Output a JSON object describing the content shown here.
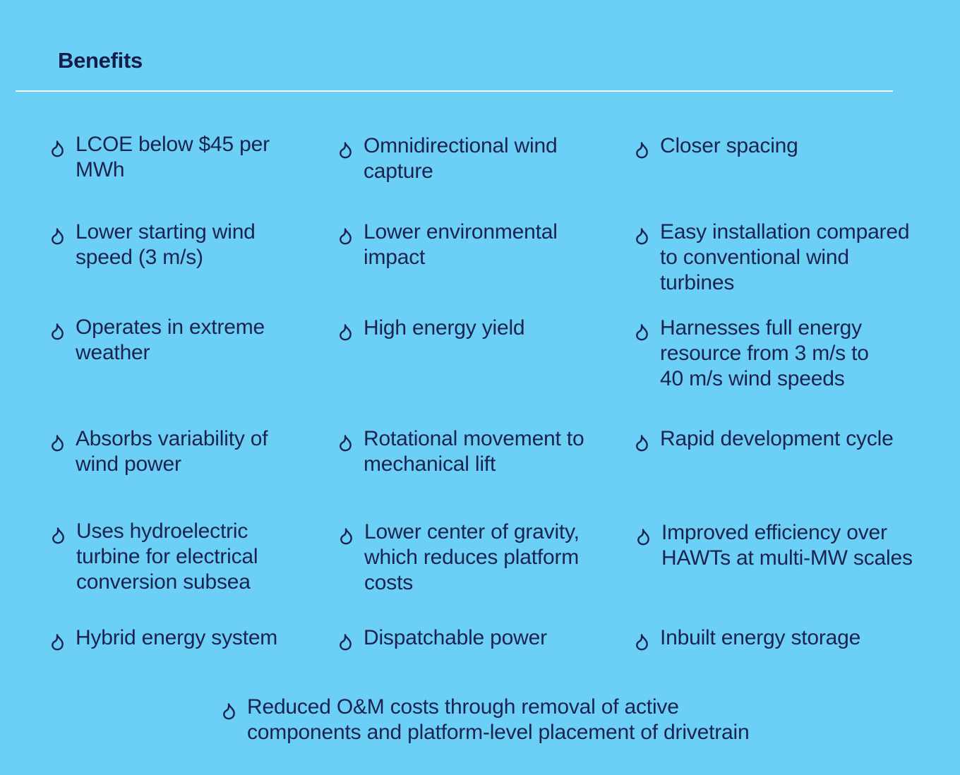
{
  "header": {
    "title": "Benefits"
  },
  "icon": "droplet-icon",
  "colors": {
    "background": "#6bcff6",
    "text": "#1a2350",
    "divider": "#f4fbff"
  },
  "benefits": [
    {
      "line1": "LCOE below $45 per",
      "line2": "MWh",
      "line3": ""
    },
    {
      "line1": "Omnidirectional wind",
      "line2": "capture",
      "line3": ""
    },
    {
      "line1": "Closer spacing",
      "line2": "",
      "line3": ""
    },
    {
      "line1": "Lower starting wind",
      "line2": "speed (3 m/s)",
      "line3": ""
    },
    {
      "line1": "Lower environmental",
      "line2": "impact",
      "line3": ""
    },
    {
      "line1": "Easy installation compared",
      "line2": "to conventional wind",
      "line3": "turbines"
    },
    {
      "line1": "Operates in extreme",
      "line2": "weather",
      "line3": ""
    },
    {
      "line1": "High energy yield",
      "line2": "",
      "line3": ""
    },
    {
      "line1": "Harnesses full energy",
      "line2": "resource from 3 m/s to",
      "line3": "40 m/s wind speeds"
    },
    {
      "line1": "Absorbs variability of",
      "line2": "wind power",
      "line3": ""
    },
    {
      "line1": "Rotational movement to",
      "line2": "mechanical lift",
      "line3": ""
    },
    {
      "line1": "Rapid development cycle",
      "line2": "",
      "line3": ""
    },
    {
      "line1": "Uses hydroelectric",
      "line2": "turbine for electrical",
      "line3": "conversion subsea"
    },
    {
      "line1": "Lower center of gravity,",
      "line2": "which reduces platform",
      "line3": "costs"
    },
    {
      "line1": "Improved efficiency over",
      "line2": "HAWTs at multi-MW scales",
      "line3": ""
    },
    {
      "line1": "Hybrid energy system",
      "line2": "",
      "line3": ""
    },
    {
      "line1": "Dispatchable power",
      "line2": "",
      "line3": ""
    },
    {
      "line1": "Inbuilt energy storage",
      "line2": "",
      "line3": ""
    },
    {
      "line1": "Reduced O&M costs through removal of active",
      "line2": "components and platform-level placement of drivetrain",
      "line3": ""
    }
  ]
}
